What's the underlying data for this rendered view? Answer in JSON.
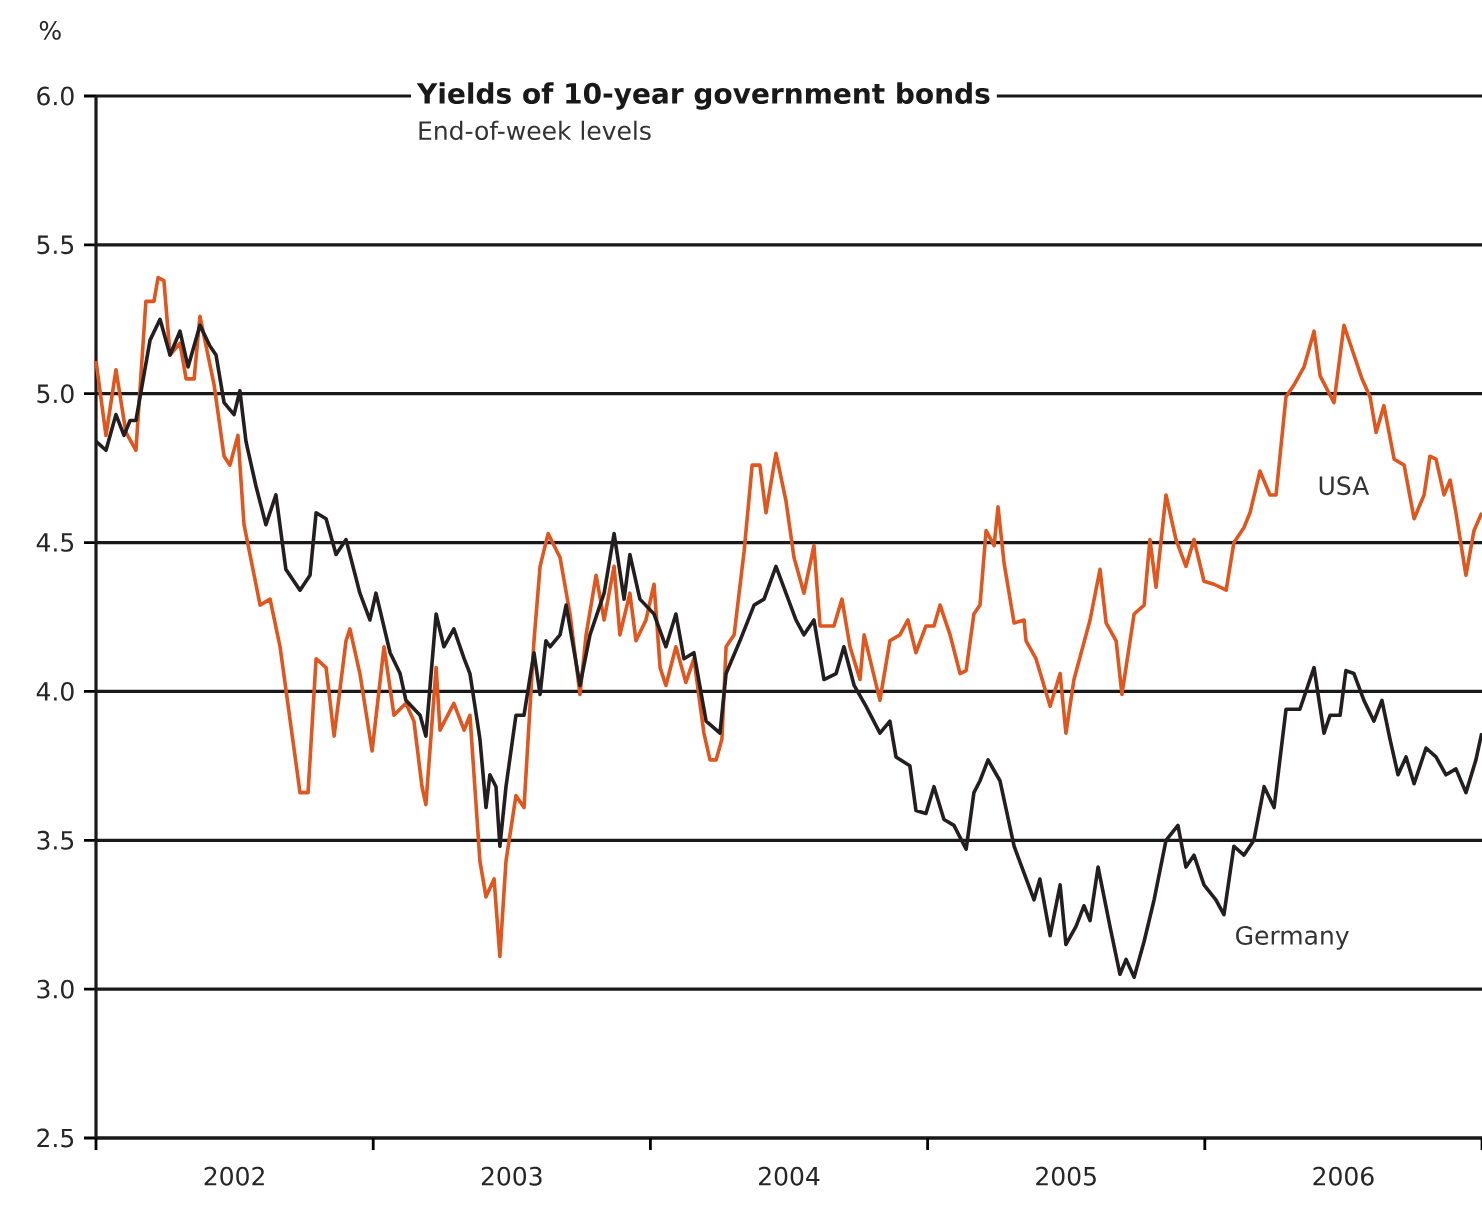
{
  "chart_data": {
    "type": "line",
    "title": "Yields of 10-year government bonds",
    "subtitle": "End-of-week levels",
    "ylabel": "%",
    "xlim": [
      2002,
      2007
    ],
    "ylim": [
      2.5,
      6.0
    ],
    "xticks": [
      {
        "value": 2002,
        "label": null
      },
      {
        "value": 2002.5,
        "label": "2002"
      },
      {
        "value": 2003,
        "label": null
      },
      {
        "value": 2003.5,
        "label": "2003"
      },
      {
        "value": 2004,
        "label": null
      },
      {
        "value": 2004.5,
        "label": "2004"
      },
      {
        "value": 2005,
        "label": null
      },
      {
        "value": 2005.5,
        "label": "2005"
      },
      {
        "value": 2006,
        "label": null
      },
      {
        "value": 2006.5,
        "label": "2006"
      },
      {
        "value": 2007,
        "label": null
      }
    ],
    "yticks": [
      2.5,
      {
        "value": 3,
        "label": "3.0"
      },
      3.5,
      {
        "value": 4,
        "label": "4.0"
      },
      4.5,
      {
        "value": 5,
        "label": "5.0"
      },
      5.5,
      {
        "value": 6,
        "label": "6.0"
      }
    ],
    "grid": "y",
    "series": [
      {
        "name": "USA",
        "color": "#e0561f",
        "x": [
          2002.0,
          2002.036,
          2002.072,
          2002.108,
          2002.144,
          2002.18,
          2002.209,
          2002.224,
          2002.245,
          2002.267,
          2002.303,
          2002.325,
          2002.354,
          2002.375,
          2002.426,
          2002.462,
          2002.483,
          2002.512,
          2002.534,
          2002.592,
          2002.628,
          2002.664,
          2002.736,
          2002.765,
          2002.794,
          2002.83,
          2002.859,
          2002.902,
          2002.916,
          2002.952,
          2002.996,
          2003.039,
          2003.075,
          2003.118,
          2003.147,
          2003.176,
          2003.19,
          2003.227,
          2003.241,
          2003.291,
          2003.328,
          2003.349,
          2003.385,
          2003.407,
          2003.436,
          2003.457,
          2003.479,
          2003.515,
          2003.544,
          2003.58,
          2003.602,
          2003.631,
          2003.674,
          2003.71,
          2003.746,
          2003.768,
          2003.804,
          2003.833,
          2003.869,
          2003.89,
          2003.926,
          2003.948,
          2003.984,
          2004.013,
          2004.035,
          2004.056,
          2004.092,
          2004.128,
          2004.157,
          2004.193,
          2004.215,
          2004.237,
          2004.258,
          2004.273,
          2004.302,
          2004.338,
          2004.367,
          2004.395,
          2004.417,
          2004.453,
          2004.489,
          2004.518,
          2004.554,
          2004.59,
          2004.612,
          2004.662,
          2004.691,
          2004.72,
          2004.756,
          2004.771,
          2004.828,
          2004.864,
          2004.9,
          2004.929,
          2004.958,
          2004.994,
          2005.023,
          2005.045,
          2005.081,
          2005.117,
          2005.139,
          2005.167,
          2005.189,
          2005.211,
          2005.24,
          2005.254,
          2005.276,
          2005.312,
          2005.348,
          2005.355,
          2005.391,
          2005.442,
          2005.478,
          2005.499,
          2005.528,
          2005.586,
          2005.622,
          2005.644,
          2005.68,
          2005.701,
          2005.745,
          2005.781,
          2005.802,
          2005.824,
          2005.86,
          2005.896,
          2005.932,
          2005.961,
          2005.997,
          2006.033,
          2006.077,
          2006.105,
          2006.141,
          2006.163,
          2006.199,
          2006.235,
          2006.257,
          2006.293,
          2006.322,
          2006.358,
          2006.394,
          2006.416,
          2006.466,
          2006.502,
          2006.538,
          2006.567,
          2006.596,
          2006.618,
          2006.646,
          2006.683,
          2006.719,
          2006.755,
          2006.791,
          2006.812,
          2006.834,
          2006.863,
          2006.885,
          2006.906,
          2006.942,
          2006.971,
          2006.999
        ],
        "values": [
          5.11,
          4.86,
          5.08,
          4.87,
          4.81,
          5.31,
          5.31,
          5.39,
          5.38,
          5.13,
          5.17,
          5.05,
          5.05,
          5.26,
          5.03,
          4.79,
          4.76,
          4.86,
          4.56,
          4.29,
          4.31,
          4.15,
          3.66,
          3.66,
          4.11,
          4.08,
          3.85,
          4.17,
          4.21,
          4.06,
          3.8,
          4.15,
          3.92,
          3.96,
          3.9,
          3.68,
          3.62,
          4.08,
          3.87,
          3.96,
          3.87,
          3.92,
          3.43,
          3.31,
          3.37,
          3.11,
          3.43,
          3.65,
          3.61,
          4.17,
          4.42,
          4.53,
          4.45,
          4.26,
          3.99,
          4.19,
          4.39,
          4.24,
          4.42,
          4.19,
          4.33,
          4.17,
          4.24,
          4.36,
          4.08,
          4.02,
          4.15,
          4.03,
          4.11,
          3.86,
          3.77,
          3.77,
          3.84,
          4.15,
          4.19,
          4.47,
          4.76,
          4.76,
          4.6,
          4.8,
          4.64,
          4.45,
          4.33,
          4.49,
          4.22,
          4.22,
          4.31,
          4.15,
          4.04,
          4.19,
          3.97,
          4.17,
          4.19,
          4.24,
          4.13,
          4.22,
          4.22,
          4.29,
          4.19,
          4.06,
          4.07,
          4.26,
          4.29,
          4.54,
          4.49,
          4.62,
          4.43,
          4.23,
          4.24,
          4.17,
          4.11,
          3.95,
          4.06,
          3.86,
          4.04,
          4.24,
          4.41,
          4.23,
          4.17,
          3.99,
          4.26,
          4.29,
          4.51,
          4.35,
          4.66,
          4.51,
          4.42,
          4.51,
          4.37,
          4.36,
          4.34,
          4.5,
          4.55,
          4.6,
          4.74,
          4.66,
          4.66,
          4.99,
          5.03,
          5.09,
          5.21,
          5.06,
          4.97,
          5.23,
          5.13,
          5.05,
          4.99,
          4.87,
          4.96,
          4.78,
          4.76,
          4.58,
          4.66,
          4.79,
          4.78,
          4.66,
          4.71,
          4.6,
          4.39,
          4.54,
          4.6
        ]
      },
      {
        "name": "Germany",
        "color": "#231f20",
        "x": [
          2002.0,
          2002.036,
          2002.072,
          2002.101,
          2002.123,
          2002.144,
          2002.195,
          2002.231,
          2002.267,
          2002.303,
          2002.332,
          2002.375,
          2002.411,
          2002.433,
          2002.462,
          2002.498,
          2002.519,
          2002.541,
          2002.577,
          2002.613,
          2002.649,
          2002.685,
          2002.736,
          2002.772,
          2002.794,
          2002.83,
          2002.866,
          2002.902,
          2002.952,
          2002.988,
          2003.01,
          2003.061,
          2003.097,
          2003.118,
          2003.169,
          2003.19,
          2003.227,
          2003.255,
          2003.291,
          2003.328,
          2003.349,
          2003.385,
          2003.407,
          2003.421,
          2003.443,
          2003.457,
          2003.479,
          2003.515,
          2003.544,
          2003.58,
          2003.602,
          2003.623,
          2003.638,
          2003.674,
          2003.696,
          2003.746,
          2003.782,
          2003.833,
          2003.869,
          2003.905,
          2003.926,
          2003.962,
          2004.013,
          2004.056,
          2004.092,
          2004.121,
          2004.157,
          2004.201,
          2004.251,
          2004.273,
          2004.323,
          2004.374,
          2004.41,
          2004.453,
          2004.489,
          2004.525,
          2004.554,
          2004.59,
          2004.626,
          2004.67,
          2004.698,
          2004.735,
          2004.778,
          2004.828,
          2004.864,
          2004.886,
          2004.936,
          2004.958,
          2004.994,
          2005.023,
          2005.059,
          2005.095,
          2005.139,
          2005.167,
          2005.189,
          2005.218,
          2005.261,
          2005.312,
          2005.348,
          2005.384,
          2005.405,
          2005.442,
          2005.478,
          2005.499,
          2005.535,
          2005.564,
          2005.586,
          2005.615,
          2005.658,
          2005.694,
          2005.716,
          2005.745,
          2005.781,
          2005.817,
          2005.86,
          2005.903,
          2005.932,
          2005.961,
          2005.997,
          2006.04,
          2006.069,
          2006.105,
          2006.141,
          2006.177,
          2006.214,
          2006.25,
          2006.293,
          2006.343,
          2006.394,
          2006.43,
          2006.452,
          2006.488,
          2006.509,
          2006.538,
          2006.574,
          2006.61,
          2006.639,
          2006.668,
          2006.697,
          2006.726,
          2006.755,
          2006.798,
          2006.834,
          2006.87,
          2006.906,
          2006.942,
          2006.978,
          2006.999
        ],
        "values": [
          4.84,
          4.81,
          4.93,
          4.86,
          4.91,
          4.91,
          5.18,
          5.25,
          5.13,
          5.21,
          5.09,
          5.23,
          5.16,
          5.13,
          4.97,
          4.93,
          5.01,
          4.84,
          4.69,
          4.56,
          4.66,
          4.41,
          4.34,
          4.39,
          4.6,
          4.58,
          4.46,
          4.51,
          4.33,
          4.24,
          4.33,
          4.13,
          4.06,
          3.97,
          3.92,
          3.85,
          4.26,
          4.15,
          4.21,
          4.11,
          4.06,
          3.84,
          3.61,
          3.72,
          3.68,
          3.48,
          3.68,
          3.92,
          3.92,
          4.13,
          3.99,
          4.17,
          4.15,
          4.19,
          4.29,
          4.02,
          4.19,
          4.33,
          4.53,
          4.31,
          4.46,
          4.31,
          4.26,
          4.15,
          4.26,
          4.11,
          4.13,
          3.9,
          3.86,
          4.06,
          4.17,
          4.29,
          4.31,
          4.42,
          4.33,
          4.24,
          4.19,
          4.24,
          4.04,
          4.06,
          4.15,
          4.02,
          3.95,
          3.86,
          3.9,
          3.78,
          3.75,
          3.6,
          3.59,
          3.68,
          3.57,
          3.55,
          3.47,
          3.66,
          3.7,
          3.77,
          3.7,
          3.48,
          3.39,
          3.3,
          3.37,
          3.18,
          3.35,
          3.15,
          3.21,
          3.28,
          3.23,
          3.41,
          3.21,
          3.05,
          3.1,
          3.04,
          3.16,
          3.3,
          3.5,
          3.55,
          3.41,
          3.45,
          3.35,
          3.3,
          3.25,
          3.48,
          3.45,
          3.5,
          3.68,
          3.61,
          3.94,
          3.94,
          4.08,
          3.86,
          3.92,
          3.92,
          4.07,
          4.06,
          3.97,
          3.9,
          3.97,
          3.84,
          3.72,
          3.78,
          3.69,
          3.81,
          3.78,
          3.72,
          3.74,
          3.66,
          3.77,
          3.86
        ]
      }
    ]
  }
}
